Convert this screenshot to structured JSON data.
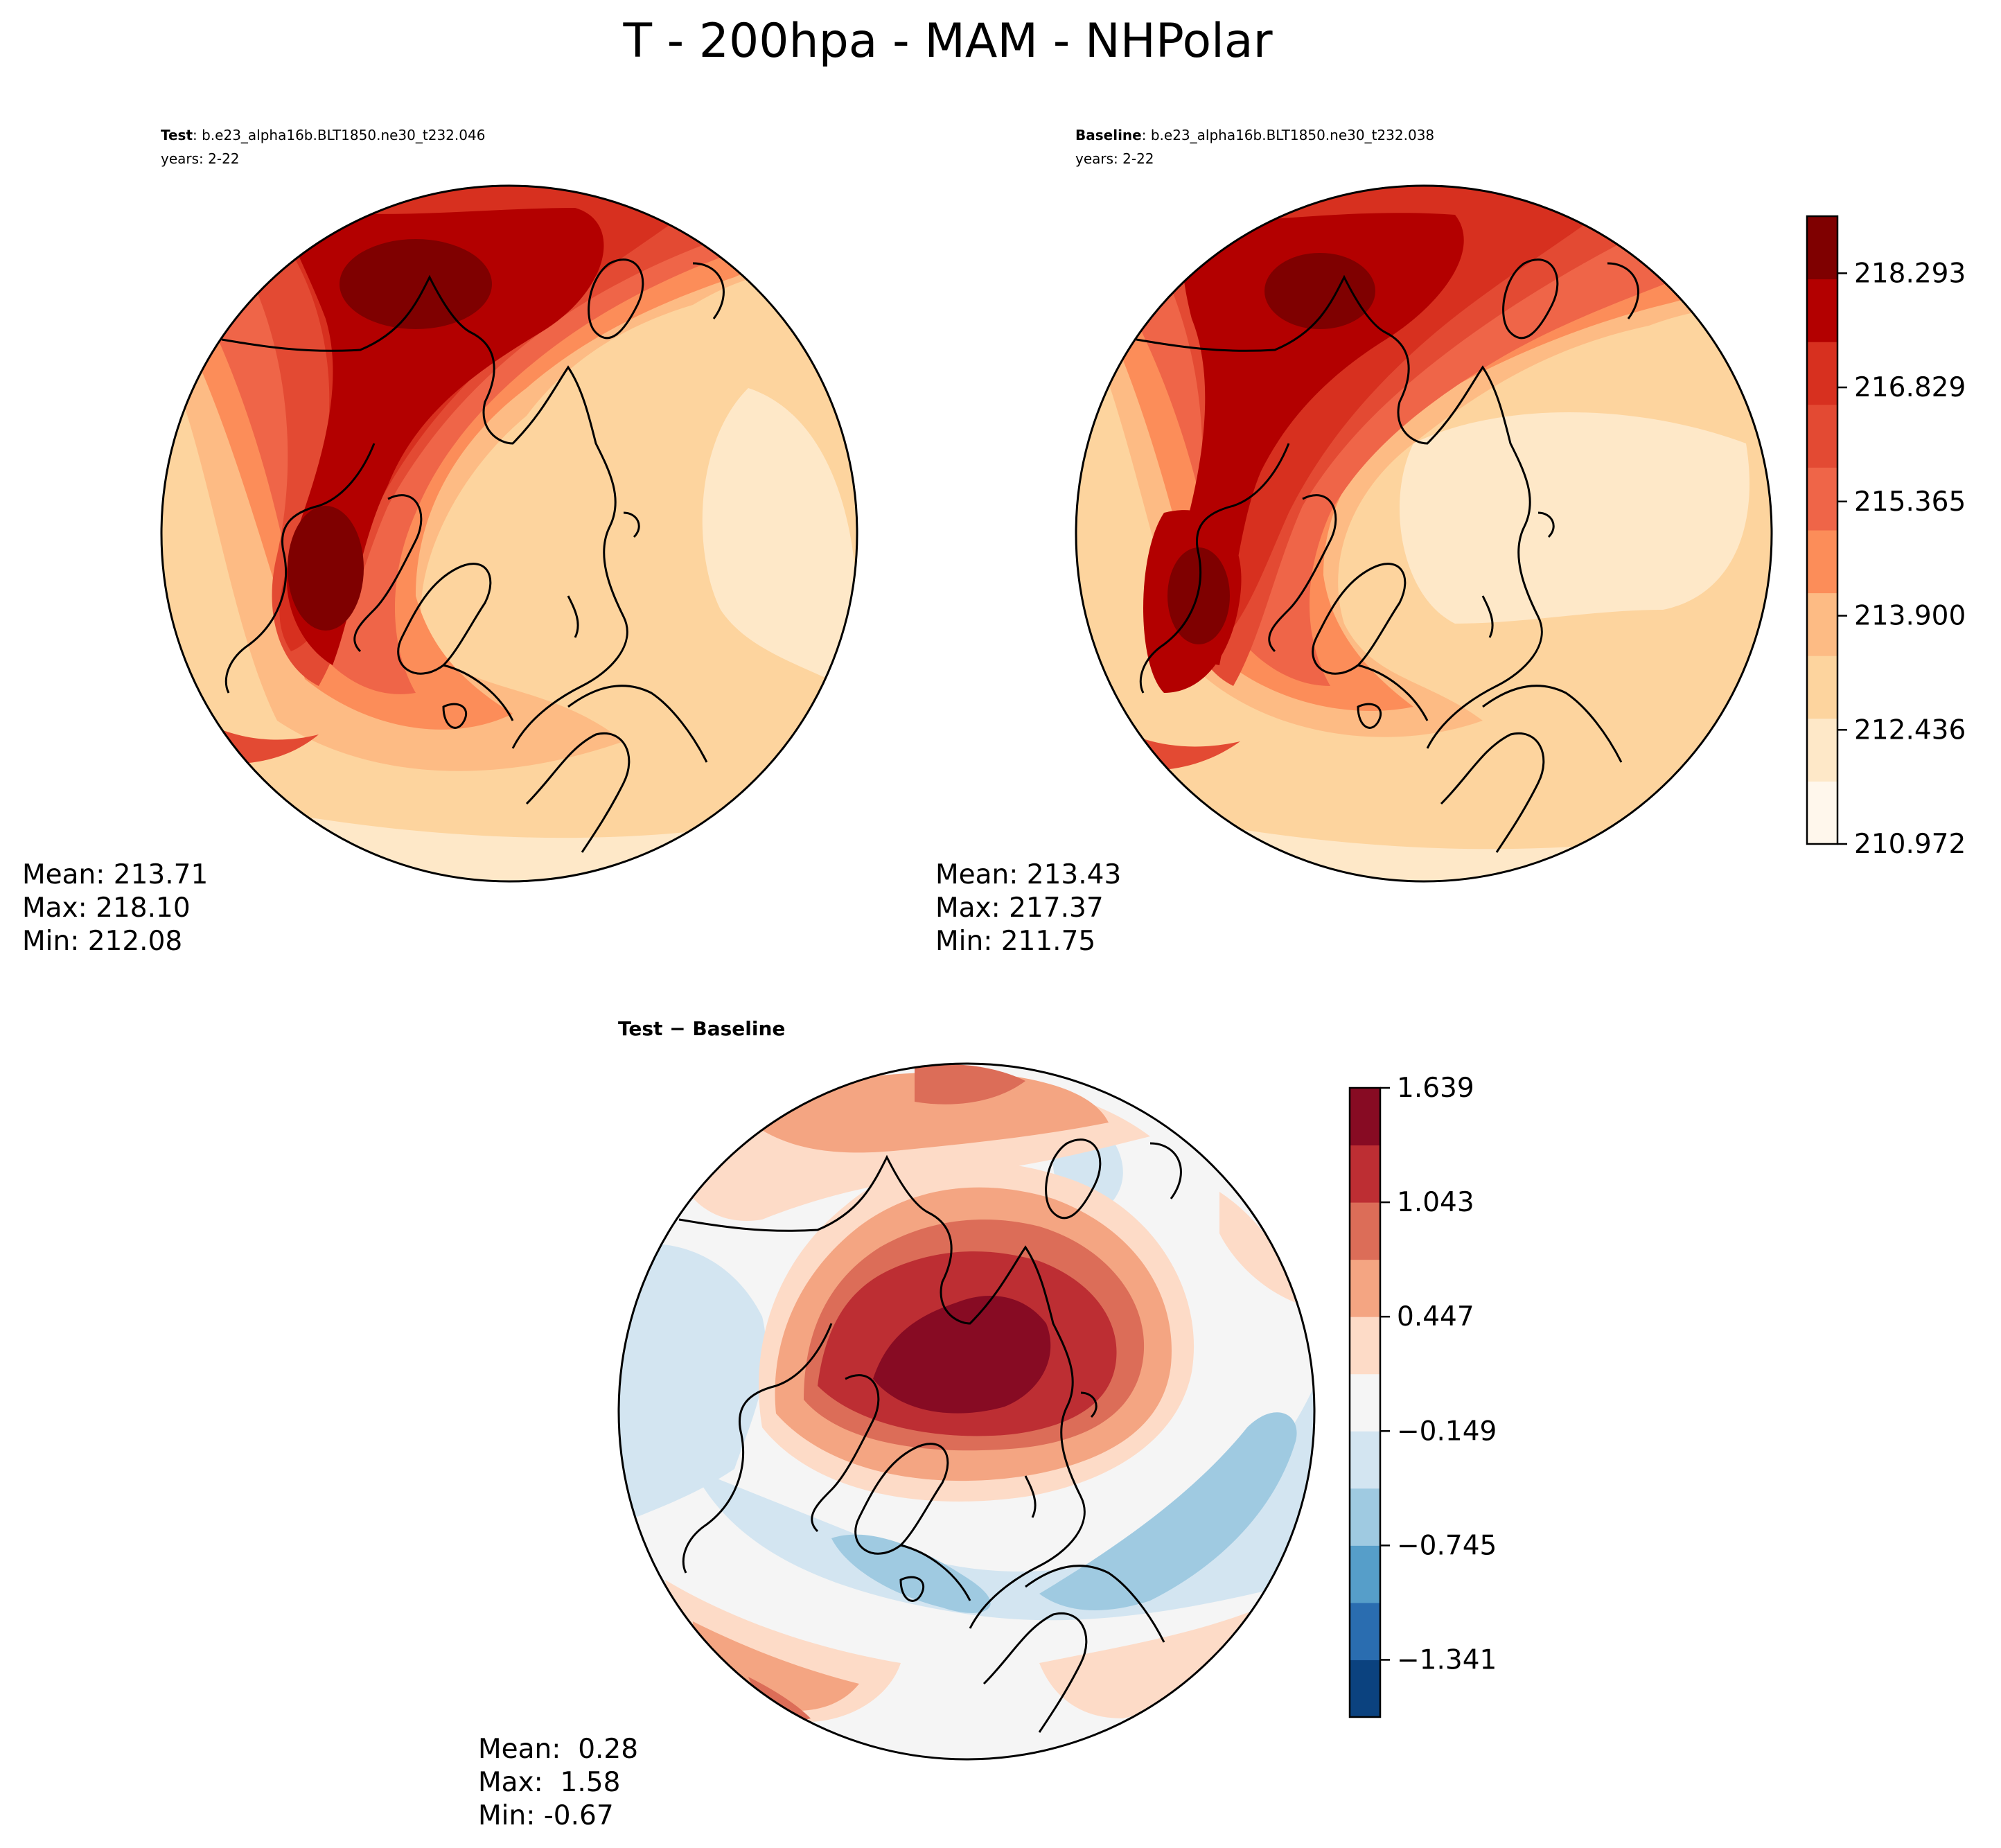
{
  "figure": {
    "title": "T - 200hpa - MAM - NHPolar"
  },
  "chart_data": [
    {
      "type": "heatmap",
      "panel": "test",
      "label_bold": "Test",
      "label_rest": ": b.e23_alpha16b.BLT1850.ne30_t232.046",
      "years": "years: 2-22",
      "stats": {
        "mean": "Mean: 213.71",
        "max": "Max: 218.10",
        "min": "Min: 212.08"
      },
      "projection": "North Polar Stereographic",
      "colormap": "OrRd"
    },
    {
      "type": "heatmap",
      "panel": "baseline",
      "label_bold": "Baseline",
      "label_rest": ": b.e23_alpha16b.BLT1850.ne30_t232.038",
      "years": "years: 2-22",
      "stats": {
        "mean": "Mean: 213.43",
        "max": "Max: 217.37",
        "min": "Min: 211.75"
      },
      "projection": "North Polar Stereographic",
      "colormap": "OrRd"
    },
    {
      "type": "heatmap",
      "panel": "difference",
      "label": "Test − Baseline",
      "stats": {
        "mean": "Mean:  0.28",
        "max": "Max:  1.58",
        "min": "Min: -0.67"
      },
      "projection": "North Polar Stereographic",
      "colormap": "RdBu_r"
    }
  ],
  "colorbars": {
    "absolute": {
      "range": [
        210.972,
        219.025
      ],
      "ticks": [
        210.972,
        212.436,
        213.9,
        215.365,
        216.829,
        218.293
      ],
      "tick_labels": [
        "210.972",
        "212.436",
        "213.900",
        "215.365",
        "216.829",
        "218.293"
      ],
      "colors": [
        "#fff7ec",
        "#fee8c8",
        "#fdd49e",
        "#fdbb84",
        "#fc8d59",
        "#ef6548",
        "#e34a33",
        "#d7301f",
        "#b30000",
        "#7f0000"
      ]
    },
    "difference": {
      "range": [
        -1.639,
        1.639
      ],
      "ticks": [
        -1.341,
        -0.745,
        -0.149,
        0.447,
        1.043,
        1.639
      ],
      "tick_labels": [
        "−1.341",
        "−0.745",
        "−0.149",
        "0.447",
        "1.043",
        "1.639"
      ],
      "colors": [
        "#0b427f",
        "#2a6db0",
        "#569ec9",
        "#9fcae1",
        "#d3e5f1",
        "#f5f5f5",
        "#fddbc7",
        "#f4a582",
        "#dc6d58",
        "#bd2e33",
        "#870b23"
      ]
    }
  }
}
